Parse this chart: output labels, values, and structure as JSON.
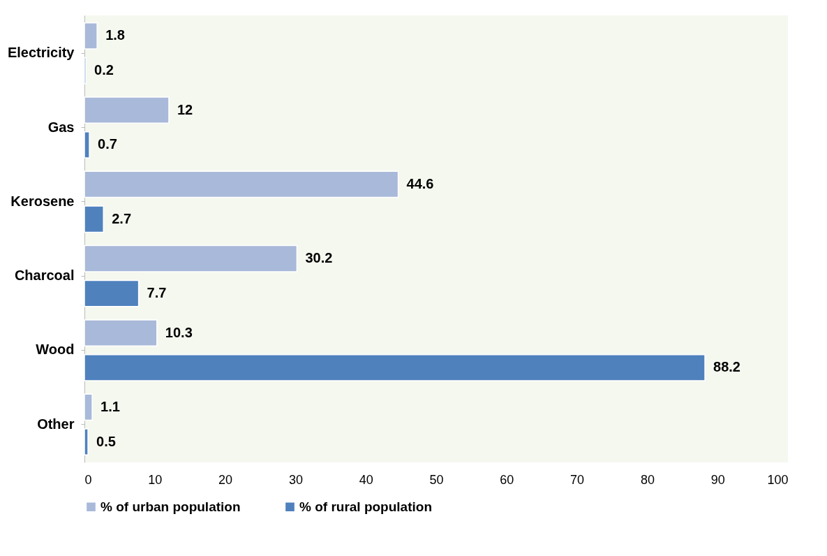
{
  "chart_data": {
    "type": "bar",
    "orientation": "horizontal",
    "categories": [
      "Electricity",
      "Gas",
      "Kerosene",
      "Charcoal",
      "Wood",
      "Other"
    ],
    "series": [
      {
        "name": "% of urban population",
        "color": "#a9b9d9",
        "values": [
          1.8,
          12,
          44.6,
          30.2,
          10.3,
          1.1
        ]
      },
      {
        "name": "% of rural population",
        "color": "#4f81bd",
        "values": [
          0.2,
          0.7,
          2.7,
          7.7,
          88.2,
          0.5
        ]
      }
    ],
    "xlim": [
      0,
      100
    ],
    "xticks": [
      0,
      10,
      20,
      30,
      40,
      50,
      60,
      70,
      80,
      90,
      100
    ],
    "grid": false,
    "legend": "bottom",
    "data_labels": true
  }
}
